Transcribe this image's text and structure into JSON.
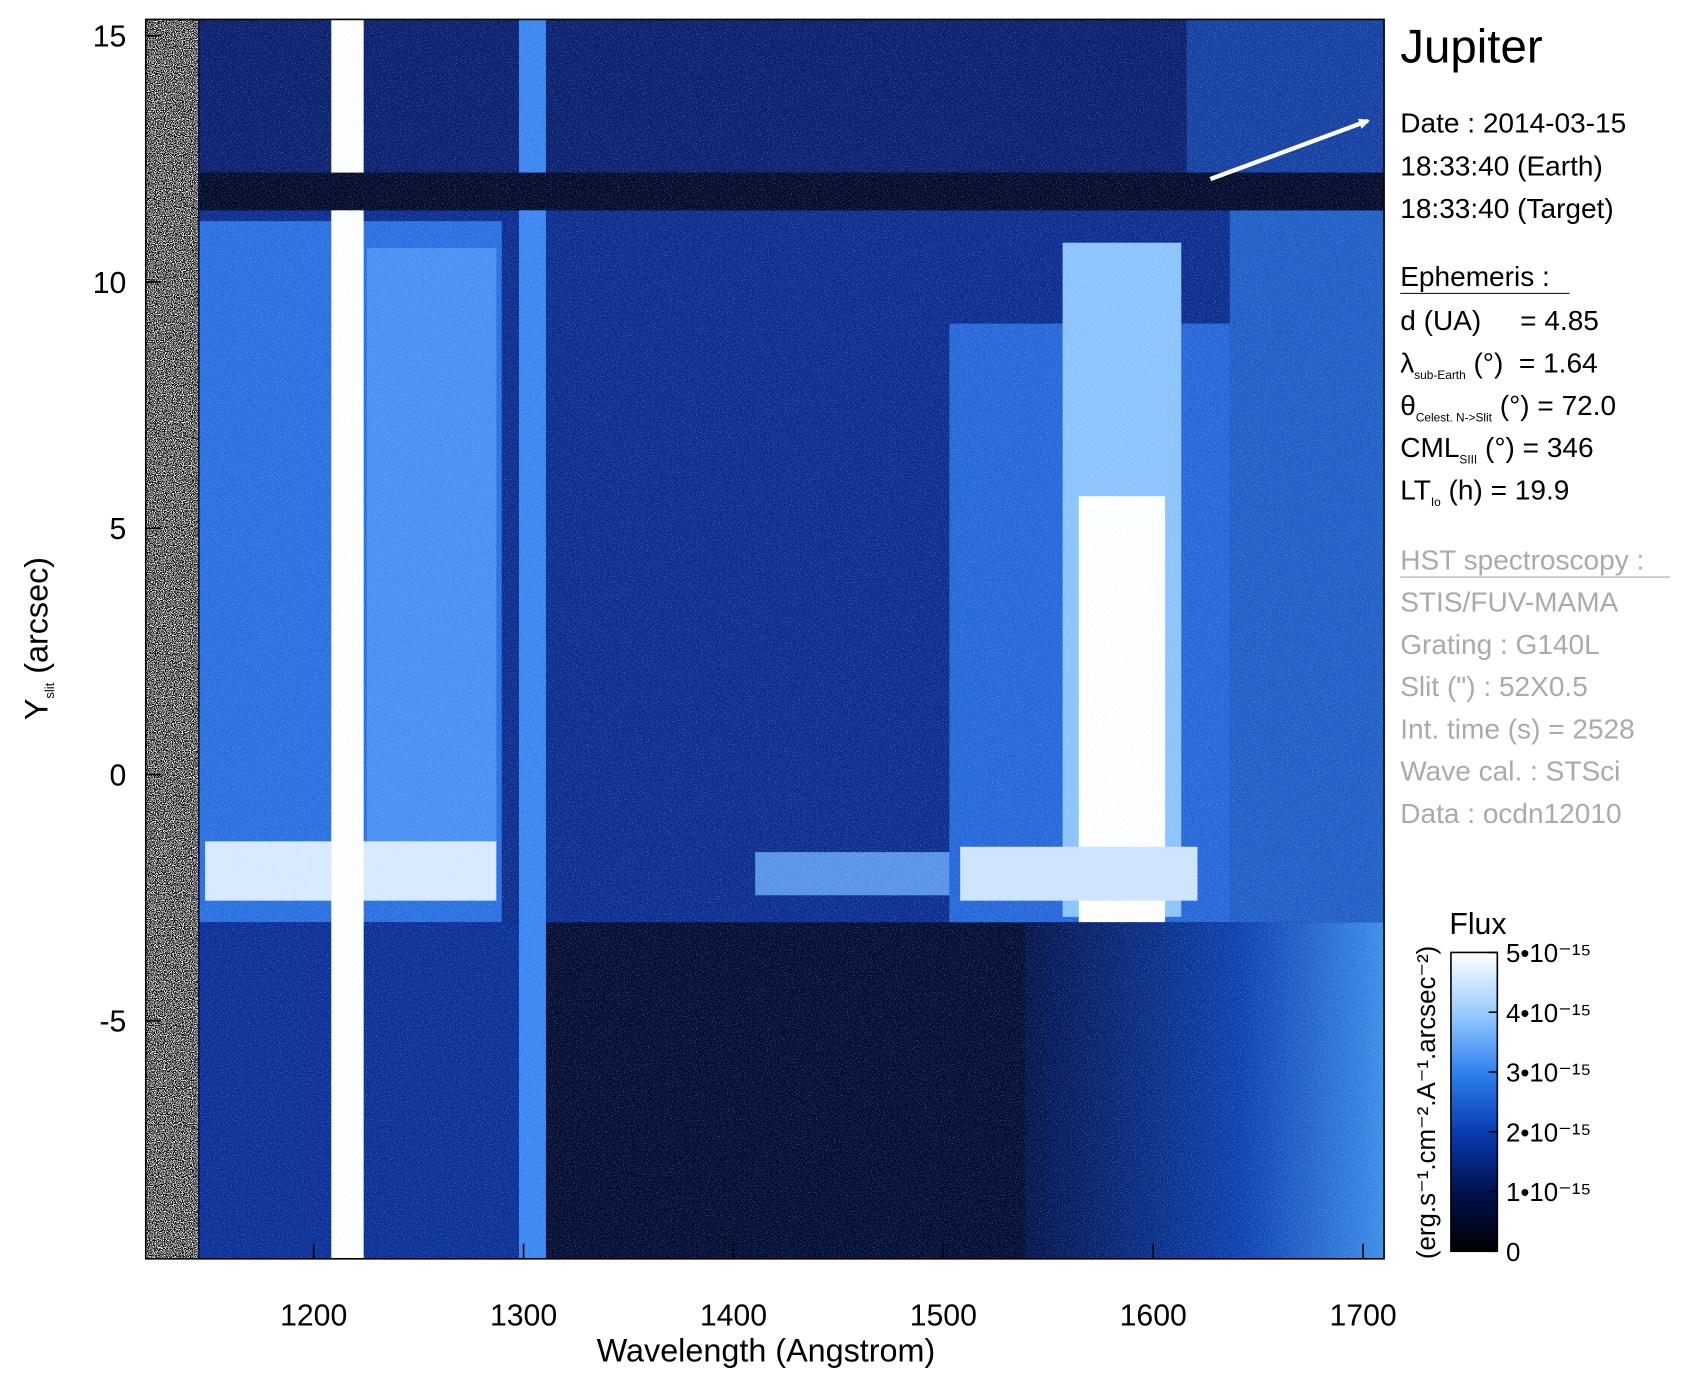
{
  "chart_data": {
    "type": "heatmap",
    "title": "Jupiter",
    "x_label": "Wavelength (Angstrom)",
    "y_label": {
      "main": "Y",
      "sub": "slit",
      "rest": " (arcsec)"
    },
    "xlim": [
      1120,
      1710
    ],
    "ylim": [
      -9.83,
      15.33
    ],
    "xticks": [
      1200,
      1300,
      1400,
      1500,
      1600,
      1700
    ],
    "yticks": [
      -5,
      0,
      5,
      10,
      15
    ],
    "date_lines": [
      "Date : 2014-03-15",
      "18:33:40 (Earth)",
      "18:33:40 (Target)"
    ],
    "ephemeris_title": "Ephemeris :",
    "ephemeris": [
      {
        "main": "d (UA)     = 4.85"
      },
      {
        "main": "λ",
        "sub": "sub-Earth",
        "rest": " (°)  = 1.64"
      },
      {
        "main": "θ",
        "sub": "Celest. N->Slit",
        "rest": " (°) = 72.0"
      },
      {
        "main": "CML",
        "sub": "SIII",
        "rest": " (°) = 346"
      },
      {
        "main": "LT",
        "sub": "Io",
        "rest": " (h) = 19.9"
      }
    ],
    "instrument_title": "HST spectroscopy :",
    "instrument": [
      "STIS/FUV-MAMA",
      "Grating : G140L",
      "Slit (\") : 52X0.5",
      "Int. time (s) = 2528",
      "Wave cal. : STSci",
      "Data : ocdn12010"
    ],
    "colorbar": {
      "title": "Flux",
      "label": "(erg.s⁻¹.cm⁻².A⁻¹.arcsec⁻²)",
      "clim": [
        0,
        5e-15
      ],
      "colors": [
        "#000000",
        "#00124f",
        "#0a3cb4",
        "#2f82f0",
        "#9cccff",
        "#ffffff"
      ],
      "ticks": [
        0,
        {
          "value": 1e-15,
          "label": "1•10⁻¹⁵"
        },
        {
          "value": 2e-15,
          "label": "2•10⁻¹⁵"
        },
        {
          "value": 3e-15,
          "label": "3•10⁻¹⁵"
        },
        {
          "value": 4e-15,
          "label": "4•10⁻¹⁵"
        },
        {
          "value": 5e-15,
          "label": "5•10⁻¹⁵"
        }
      ]
    }
  }
}
